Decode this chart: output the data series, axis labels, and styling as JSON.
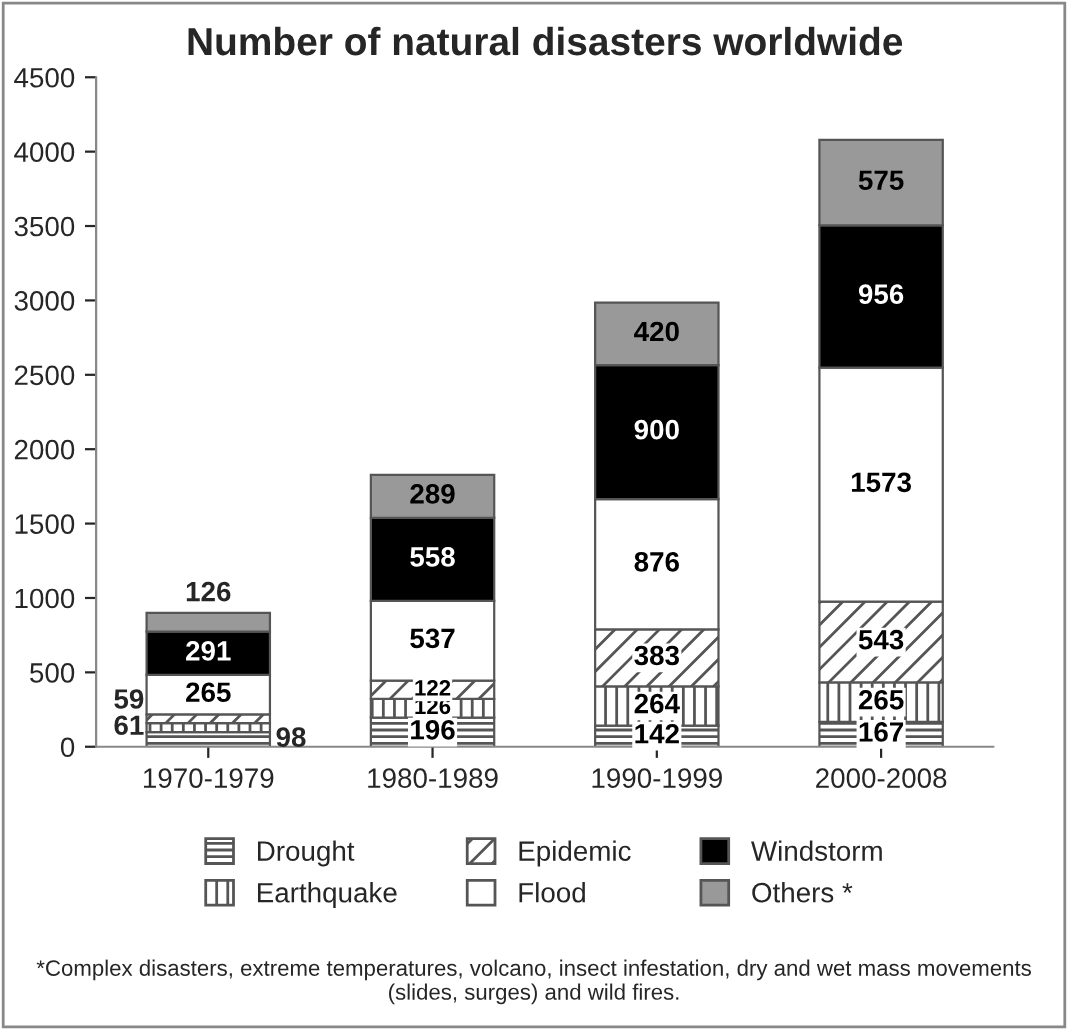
{
  "chart_data": {
    "type": "bar",
    "stacked": true,
    "title": "Number of natural disasters worldwide",
    "categories": [
      "1970-1979",
      "1980-1989",
      "1990-1999",
      "2000-2008"
    ],
    "series": [
      {
        "name": "Drought",
        "color": "#555555",
        "values": [
          98,
          196,
          142,
          167
        ]
      },
      {
        "name": "Earthquake",
        "color": "#555555",
        "values": [
          61,
          126,
          264,
          265
        ]
      },
      {
        "name": "Epidemic",
        "color": "#555555",
        "values": [
          59,
          122,
          383,
          543
        ]
      },
      {
        "name": "Flood",
        "color": "#ffffff",
        "values": [
          265,
          537,
          876,
          1573
        ]
      },
      {
        "name": "Windstorm",
        "color": "#000000",
        "values": [
          291,
          558,
          900,
          956
        ]
      },
      {
        "name": "Others *",
        "color": "#999999",
        "values": [
          126,
          289,
          420,
          575
        ]
      }
    ],
    "ylim": [
      0,
      4500
    ],
    "yticks": [
      0,
      500,
      1000,
      1500,
      2000,
      2500,
      3000,
      3500,
      4000,
      4500
    ],
    "data_labels": true,
    "legend": "bottom",
    "grid": false,
    "annotations": [
      "*Complex disasters, extreme temperatures, volcano, insect infestation, dry and wet mass movements (slides, surges) and wild fires."
    ]
  }
}
